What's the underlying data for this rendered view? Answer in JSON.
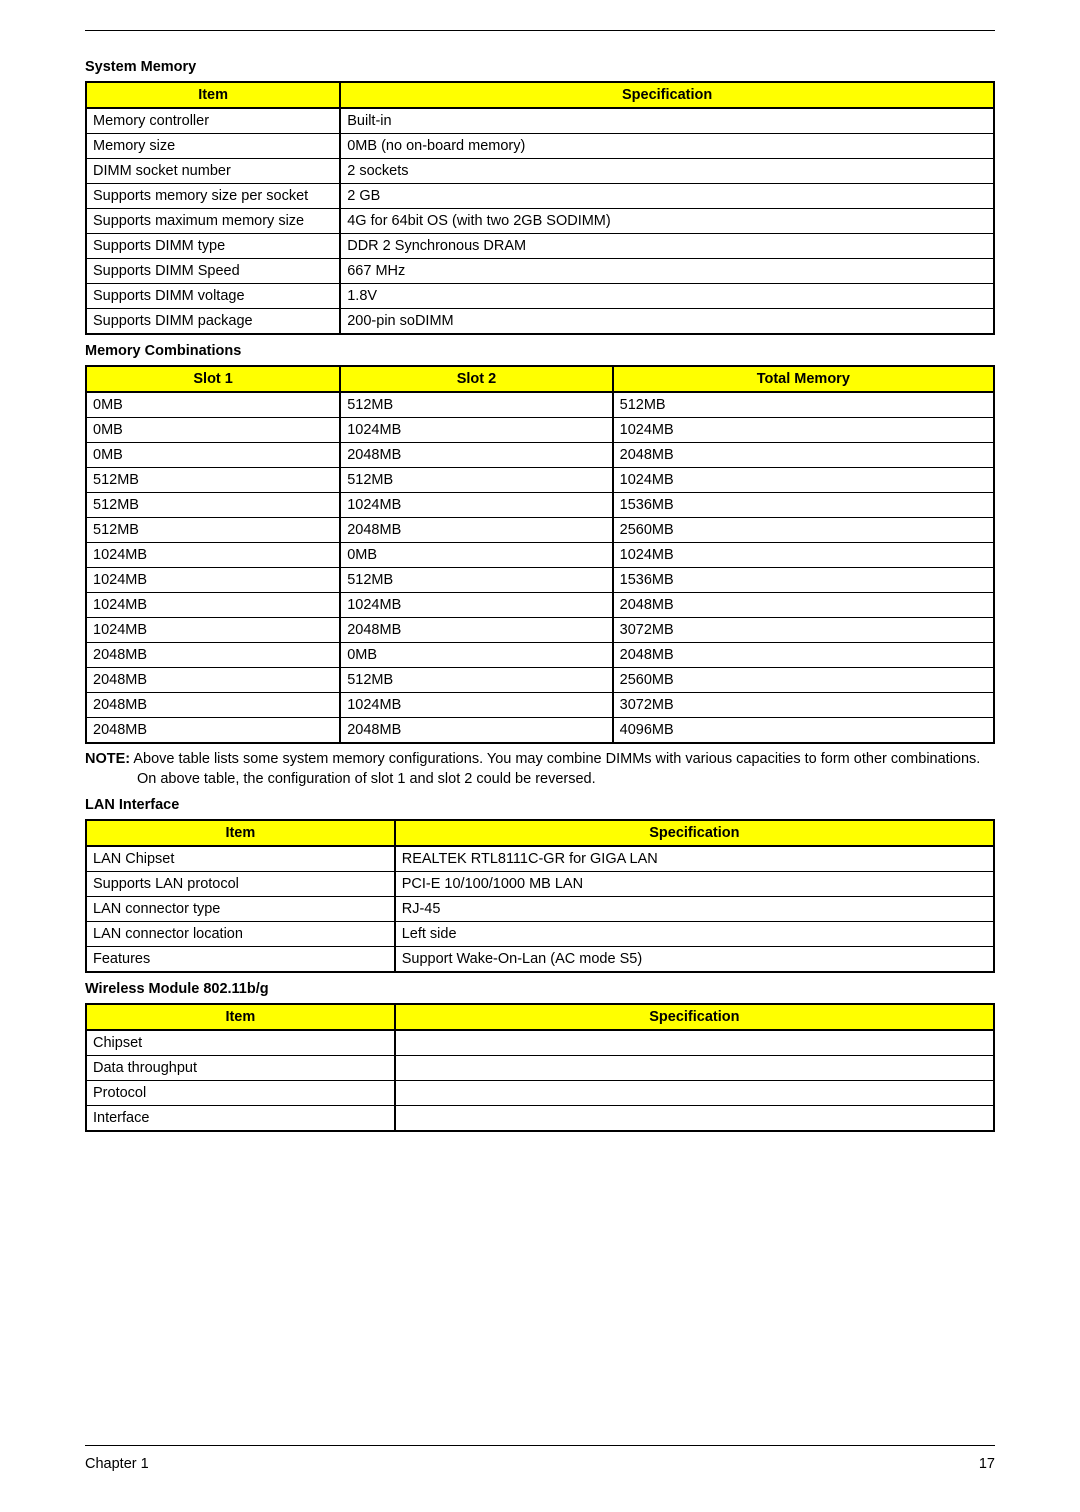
{
  "styling": {
    "header_bg": "#ffff00",
    "border_color": "#000000",
    "page_bg": "#ffffff",
    "font_family": "Arial",
    "body_fontsize_pt": 11,
    "title_fontweight": "bold"
  },
  "sections": {
    "sysmem": {
      "title": "System Memory",
      "columns": [
        "Item",
        "Specification"
      ],
      "rows": [
        [
          "Memory controller",
          "Built-in"
        ],
        [
          "Memory size",
          "0MB (no on-board memory)"
        ],
        [
          "DIMM socket number",
          "2 sockets"
        ],
        [
          "Supports memory size per socket",
          "2 GB"
        ],
        [
          "Supports maximum memory size",
          "4G for 64bit OS (with two 2GB SODIMM)"
        ],
        [
          "Supports DIMM type",
          "DDR 2 Synchronous DRAM"
        ],
        [
          "Supports DIMM Speed",
          "667 MHz"
        ],
        [
          "Supports DIMM voltage",
          "1.8V"
        ],
        [
          "Supports DIMM package",
          "200-pin soDIMM"
        ]
      ]
    },
    "memcomb": {
      "title": "Memory Combinations",
      "columns": [
        "Slot 1",
        "Slot 2",
        "Total Memory"
      ],
      "rows": [
        [
          "0MB",
          "512MB",
          "512MB"
        ],
        [
          "0MB",
          "1024MB",
          "1024MB"
        ],
        [
          "0MB",
          "2048MB",
          "2048MB"
        ],
        [
          "512MB",
          "512MB",
          "1024MB"
        ],
        [
          "512MB",
          "1024MB",
          "1536MB"
        ],
        [
          "512MB",
          "2048MB",
          "2560MB"
        ],
        [
          "1024MB",
          "0MB",
          "1024MB"
        ],
        [
          "1024MB",
          "512MB",
          "1536MB"
        ],
        [
          "1024MB",
          "1024MB",
          "2048MB"
        ],
        [
          "1024MB",
          "2048MB",
          "3072MB"
        ],
        [
          "2048MB",
          "0MB",
          "2048MB"
        ],
        [
          "2048MB",
          "512MB",
          "2560MB"
        ],
        [
          "2048MB",
          "1024MB",
          "3072MB"
        ],
        [
          "2048MB",
          "2048MB",
          "4096MB"
        ]
      ]
    },
    "note": {
      "label": "NOTE:",
      "text": "Above table lists some system memory configurations. You may combine DIMMs with various capacities to form other combinations. On above table, the configuration of slot 1 and slot 2 could be reversed."
    },
    "lan": {
      "title": "LAN Interface",
      "columns": [
        "Item",
        "Specification"
      ],
      "rows": [
        [
          "LAN Chipset",
          "REALTEK RTL8111C-GR for GIGA LAN"
        ],
        [
          "Supports LAN protocol",
          "PCI-E 10/100/1000 MB LAN"
        ],
        [
          "LAN connector type",
          "RJ-45"
        ],
        [
          "LAN connector location",
          "Left side"
        ],
        [
          "Features",
          "Support Wake-On-Lan (AC mode S5)"
        ]
      ]
    },
    "wifi": {
      "title": "Wireless Module 802.11b/g",
      "columns": [
        "Item",
        "Specification"
      ],
      "rows": [
        [
          "Chipset",
          ""
        ],
        [
          "Data throughput",
          ""
        ],
        [
          "Protocol",
          ""
        ],
        [
          "Interface",
          ""
        ]
      ]
    }
  },
  "footer": {
    "chapter": "Chapter 1",
    "page": "17"
  }
}
